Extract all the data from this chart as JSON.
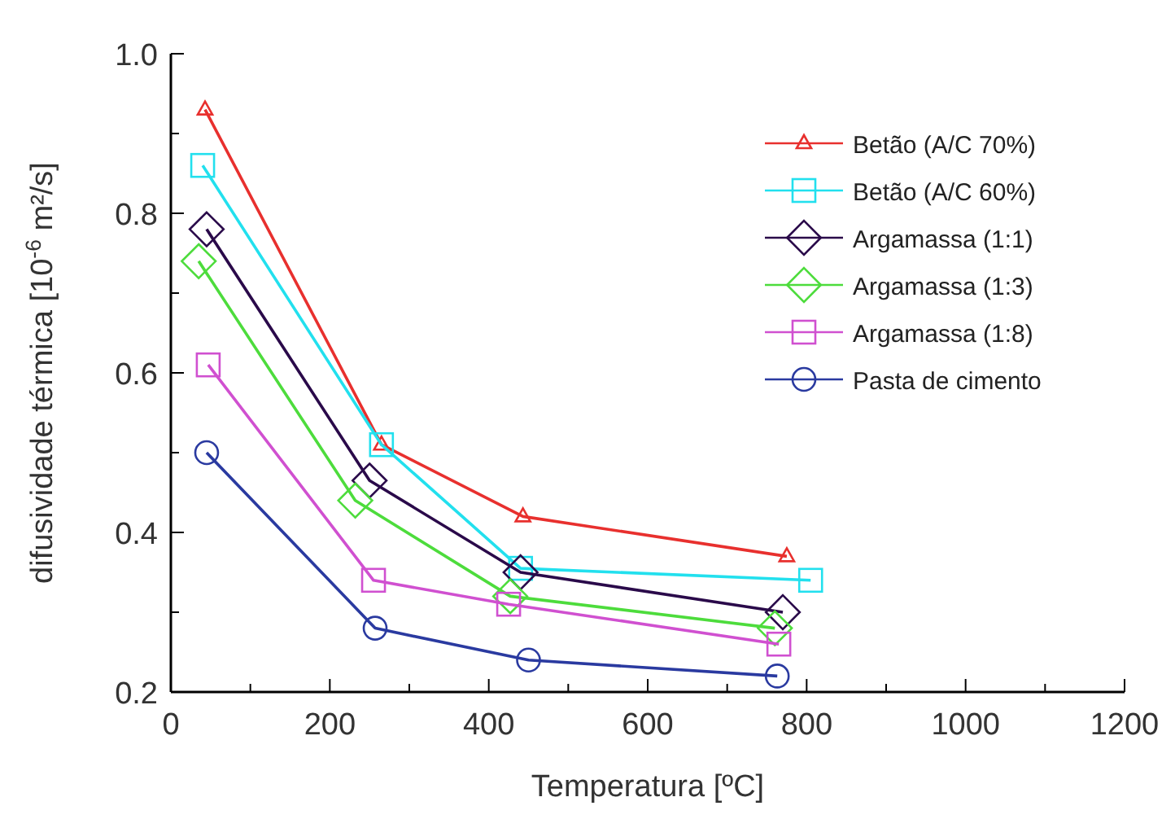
{
  "chart_data": {
    "type": "line",
    "xlabel": "Temperatura  [ºC]",
    "ylabel": "difusividade térmica [10$^{-6}$ m²/s]",
    "xlim": [
      0,
      1200
    ],
    "xticks": [
      0,
      {
        "value": 100,
        "label": null
      },
      200,
      {
        "value": 300,
        "label": null
      },
      400,
      {
        "value": 500,
        "label": null
      },
      600,
      {
        "value": 700,
        "label": null
      },
      800,
      {
        "value": 900,
        "label": null
      },
      1000,
      {
        "value": 1100,
        "label": null
      },
      1200
    ],
    "ylim": [
      0.2,
      1.0
    ],
    "yticks": [
      0.2,
      {
        "value": 0.3,
        "label": null
      },
      0.4,
      {
        "value": 0.5,
        "label": null
      },
      0.6,
      {
        "value": 0.7,
        "label": null
      },
      0.8,
      {
        "value": 0.9,
        "label": null
      },
      {
        "value": 1.0,
        "label": "1.0"
      }
    ],
    "grid": false,
    "legend": "top right",
    "line_style": "solid",
    "series": [
      {
        "name": "Betão (A/C 70%)",
        "color": "#e8302e",
        "marker": "triangle",
        "x": [
          43,
          265,
          443,
          775
        ],
        "values": [
          0.93,
          0.51,
          0.42,
          0.37
        ]
      },
      {
        "name": "Betão (A/C 60%)",
        "color": "#22e0ee",
        "marker": "square",
        "x": [
          40,
          265,
          440,
          805
        ],
        "values": [
          0.86,
          0.51,
          0.355,
          0.34
        ]
      },
      {
        "name": "Argamassa (1:1)",
        "color": "#2a0a4a",
        "marker": "diamond",
        "x": [
          45,
          250,
          440,
          770
        ],
        "values": [
          0.78,
          0.465,
          0.35,
          0.3
        ]
      },
      {
        "name": "Argamassa (1:3)",
        "color": "#4ddc3c",
        "marker": "diamond",
        "x": [
          35,
          232,
          427,
          760
        ],
        "values": [
          0.74,
          0.44,
          0.32,
          0.28
        ]
      },
      {
        "name": "Argamassa (1:8)",
        "color": "#d050d0",
        "marker": "square",
        "x": [
          47,
          255,
          425,
          765
        ],
        "values": [
          0.61,
          0.34,
          0.31,
          0.26
        ]
      },
      {
        "name": "Pasta de cimento",
        "color": "#2a3aa0",
        "marker": "circle",
        "x": [
          45,
          257,
          450,
          763
        ],
        "values": [
          0.5,
          0.28,
          0.24,
          0.22
        ]
      }
    ]
  }
}
